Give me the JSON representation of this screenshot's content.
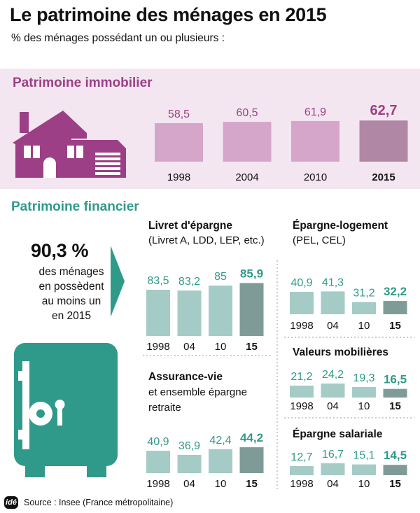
{
  "header": {
    "title": "Le patrimoine des ménages en 2015",
    "subtitle": "% des ménages possédant un ou plusieurs :"
  },
  "immobilier": {
    "section_title": "Patrimoine immobilier"
  },
  "financier": {
    "section_title": "Patrimoine financier",
    "highlight_value": "90,3 %",
    "highlight_lines": [
      "des ménages",
      "en possèdent",
      "au moins un",
      "en 2015"
    ]
  },
  "panels": {
    "livret": {
      "title": "Livret d'épargne",
      "subtitle": "(Livret A, LDD, LEP, etc.)"
    },
    "epargne_logement": {
      "title": "Épargne-logement",
      "subtitle": "(PEL, CEL)"
    },
    "valeurs": {
      "title": "Valeurs mobilières"
    },
    "assurance": {
      "title": "Assurance-vie",
      "subtitle_lines": [
        "et ensemble épargne",
        "retraite"
      ]
    },
    "salariale": {
      "title": "Épargne salariale"
    }
  },
  "source": "Source : Insee (France métropolitaine)",
  "logo_text": "idé",
  "colors": {
    "immo_bar": "#d6a5ca",
    "immo_bar_highlight": "#b187a6",
    "immo_accent": "#9c3f86",
    "immo_band": "#f3e6f0",
    "fin_bar": "#a5cbc6",
    "fin_bar_highlight": "#7f9b98",
    "fin_accent": "#2f9a8a"
  },
  "chart_data": [
    {
      "id": "immo",
      "type": "bar",
      "title": "Patrimoine immobilier",
      "categories": [
        "1998",
        "2004",
        "2010",
        "2015"
      ],
      "values": [
        58.5,
        60.5,
        61.9,
        62.7
      ],
      "value_labels": [
        "58,5",
        "60,5",
        "61,9",
        "62,7"
      ],
      "highlight_index": 3
    },
    {
      "id": "livret",
      "type": "bar",
      "title": "Livret d'épargne",
      "categories": [
        "1998",
        "04",
        "10",
        "15"
      ],
      "values": [
        83.5,
        83.2,
        85,
        85.9
      ],
      "value_labels": [
        "83,5",
        "83,2",
        "85",
        "85,9"
      ],
      "highlight_index": 3
    },
    {
      "id": "epargne_logement",
      "type": "bar",
      "title": "Épargne-logement",
      "categories": [
        "1998",
        "04",
        "10",
        "15"
      ],
      "values": [
        40.9,
        41.3,
        31.2,
        32.2
      ],
      "value_labels": [
        "40,9",
        "41,3",
        "31,2",
        "32,2"
      ],
      "highlight_index": 3
    },
    {
      "id": "valeurs",
      "type": "bar",
      "title": "Valeurs mobilières",
      "categories": [
        "1998",
        "04",
        "10",
        "15"
      ],
      "values": [
        21.2,
        24.2,
        19.3,
        16.5
      ],
      "value_labels": [
        "21,2",
        "24,2",
        "19,3",
        "16,5"
      ],
      "highlight_index": 3
    },
    {
      "id": "assurance",
      "type": "bar",
      "title": "Assurance-vie",
      "categories": [
        "1998",
        "04",
        "10",
        "15"
      ],
      "values": [
        40.9,
        36.9,
        42.4,
        44.2
      ],
      "value_labels": [
        "40,9",
        "36,9",
        "42,4",
        "44,2"
      ],
      "highlight_index": 3
    },
    {
      "id": "salariale",
      "type": "bar",
      "title": "Épargne salariale",
      "categories": [
        "1998",
        "04",
        "10",
        "15"
      ],
      "values": [
        12.7,
        16.7,
        15.1,
        14.5
      ],
      "value_labels": [
        "12,7",
        "16,7",
        "15,1",
        "14,5"
      ],
      "highlight_index": 3
    }
  ]
}
